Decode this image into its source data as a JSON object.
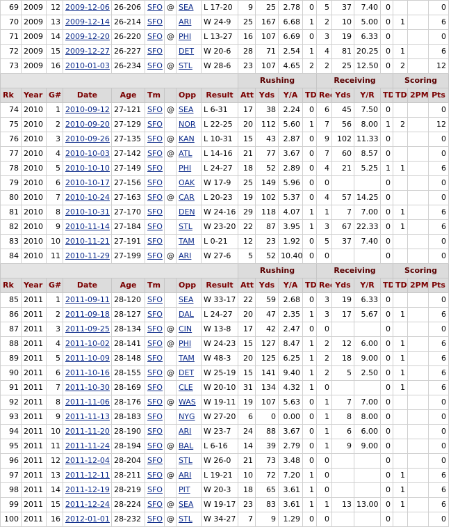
{
  "sections": [
    {
      "rows": [
        {
          "rk": "69",
          "year": "2009",
          "g": "12",
          "date": "2009-12-06",
          "age": "26-206",
          "tm": "SFO",
          "at": "@",
          "opp": "SEA",
          "result": "L 17-20",
          "att": "9",
          "yds": "25",
          "ya": "2.78",
          "td": "0",
          "rec": "5",
          "recyds": "37",
          "yr": "7.40",
          "rectd": "0",
          "tpm": "",
          "pts": "0"
        },
        {
          "rk": "70",
          "year": "2009",
          "g": "13",
          "date": "2009-12-14",
          "age": "26-214",
          "tm": "SFO",
          "at": "",
          "opp": "ARI",
          "result": "W 24-9",
          "att": "25",
          "yds": "167",
          "ya": "6.68",
          "td": "1",
          "rec": "2",
          "recyds": "10",
          "yr": "5.00",
          "rectd": "0",
          "tpm": "1",
          "pts": "6"
        },
        {
          "rk": "71",
          "year": "2009",
          "g": "14",
          "date": "2009-12-20",
          "age": "26-220",
          "tm": "SFO",
          "at": "@",
          "opp": "PHI",
          "result": "L 13-27",
          "att": "16",
          "yds": "107",
          "ya": "6.69",
          "td": "0",
          "rec": "3",
          "recyds": "19",
          "yr": "6.33",
          "rectd": "0",
          "tpm": "",
          "pts": "0"
        },
        {
          "rk": "72",
          "year": "2009",
          "g": "15",
          "date": "2009-12-27",
          "age": "26-227",
          "tm": "SFO",
          "at": "",
          "opp": "DET",
          "result": "W 20-6",
          "att": "28",
          "yds": "71",
          "ya": "2.54",
          "td": "1",
          "rec": "4",
          "recyds": "81",
          "yr": "20.25",
          "rectd": "0",
          "tpm": "1",
          "pts": "6"
        },
        {
          "rk": "73",
          "year": "2009",
          "g": "16",
          "date": "2010-01-03",
          "age": "26-234",
          "tm": "SFO",
          "at": "@",
          "opp": "STL",
          "result": "W 28-6",
          "att": "23",
          "yds": "107",
          "ya": "4.65",
          "td": "2",
          "rec": "2",
          "recyds": "25",
          "yr": "12.50",
          "rectd": "0",
          "tpm": "2",
          "pts": "12"
        }
      ]
    },
    {
      "rows": [
        {
          "rk": "74",
          "year": "2010",
          "g": "1",
          "date": "2010-09-12",
          "age": "27-121",
          "tm": "SFO",
          "at": "@",
          "opp": "SEA",
          "result": "L 6-31",
          "att": "17",
          "yds": "38",
          "ya": "2.24",
          "td": "0",
          "rec": "6",
          "recyds": "45",
          "yr": "7.50",
          "rectd": "0",
          "tpm": "",
          "pts": "0"
        },
        {
          "rk": "75",
          "year": "2010",
          "g": "2",
          "date": "2010-09-20",
          "age": "27-129",
          "tm": "SFO",
          "at": "",
          "opp": "NOR",
          "result": "L 22-25",
          "att": "20",
          "yds": "112",
          "ya": "5.60",
          "td": "1",
          "rec": "7",
          "recyds": "56",
          "yr": "8.00",
          "rectd": "1",
          "tpm": "2",
          "pts": "12"
        },
        {
          "rk": "76",
          "year": "2010",
          "g": "3",
          "date": "2010-09-26",
          "age": "27-135",
          "tm": "SFO",
          "at": "@",
          "opp": "KAN",
          "result": "L 10-31",
          "att": "15",
          "yds": "43",
          "ya": "2.87",
          "td": "0",
          "rec": "9",
          "recyds": "102",
          "yr": "11.33",
          "rectd": "0",
          "tpm": "",
          "pts": "0"
        },
        {
          "rk": "77",
          "year": "2010",
          "g": "4",
          "date": "2010-10-03",
          "age": "27-142",
          "tm": "SFO",
          "at": "@",
          "opp": "ATL",
          "result": "L 14-16",
          "att": "21",
          "yds": "77",
          "ya": "3.67",
          "td": "0",
          "rec": "7",
          "recyds": "60",
          "yr": "8.57",
          "rectd": "0",
          "tpm": "",
          "pts": "0"
        },
        {
          "rk": "78",
          "year": "2010",
          "g": "5",
          "date": "2010-10-10",
          "age": "27-149",
          "tm": "SFO",
          "at": "",
          "opp": "PHI",
          "result": "L 24-27",
          "att": "18",
          "yds": "52",
          "ya": "2.89",
          "td": "0",
          "rec": "4",
          "recyds": "21",
          "yr": "5.25",
          "rectd": "1",
          "tpm": "1",
          "pts": "6"
        },
        {
          "rk": "79",
          "year": "2010",
          "g": "6",
          "date": "2010-10-17",
          "age": "27-156",
          "tm": "SFO",
          "at": "",
          "opp": "OAK",
          "result": "W 17-9",
          "att": "25",
          "yds": "149",
          "ya": "5.96",
          "td": "0",
          "rec": "0",
          "recyds": "",
          "yr": "",
          "rectd": "0",
          "tpm": "",
          "pts": "0"
        },
        {
          "rk": "80",
          "year": "2010",
          "g": "7",
          "date": "2010-10-24",
          "age": "27-163",
          "tm": "SFO",
          "at": "@",
          "opp": "CAR",
          "result": "L 20-23",
          "att": "19",
          "yds": "102",
          "ya": "5.37",
          "td": "0",
          "rec": "4",
          "recyds": "57",
          "yr": "14.25",
          "rectd": "0",
          "tpm": "",
          "pts": "0"
        },
        {
          "rk": "81",
          "year": "2010",
          "g": "8",
          "date": "2010-10-31",
          "age": "27-170",
          "tm": "SFO",
          "at": "",
          "opp": "DEN",
          "result": "W 24-16",
          "att": "29",
          "yds": "118",
          "ya": "4.07",
          "td": "1",
          "rec": "1",
          "recyds": "7",
          "yr": "7.00",
          "rectd": "0",
          "tpm": "1",
          "pts": "6"
        },
        {
          "rk": "82",
          "year": "2010",
          "g": "9",
          "date": "2010-11-14",
          "age": "27-184",
          "tm": "SFO",
          "at": "",
          "opp": "STL",
          "result": "W 23-20",
          "att": "22",
          "yds": "87",
          "ya": "3.95",
          "td": "1",
          "rec": "3",
          "recyds": "67",
          "yr": "22.33",
          "rectd": "0",
          "tpm": "1",
          "pts": "6"
        },
        {
          "rk": "83",
          "year": "2010",
          "g": "10",
          "date": "2010-11-21",
          "age": "27-191",
          "tm": "SFO",
          "at": "",
          "opp": "TAM",
          "result": "L 0-21",
          "att": "12",
          "yds": "23",
          "ya": "1.92",
          "td": "0",
          "rec": "5",
          "recyds": "37",
          "yr": "7.40",
          "rectd": "0",
          "tpm": "",
          "pts": "0"
        },
        {
          "rk": "84",
          "year": "2010",
          "g": "11",
          "date": "2010-11-29",
          "age": "27-199",
          "tm": "SFO",
          "at": "@",
          "opp": "ARI",
          "result": "W 27-6",
          "att": "5",
          "yds": "52",
          "ya": "10.40",
          "td": "0",
          "rec": "0",
          "recyds": "",
          "yr": "",
          "rectd": "0",
          "tpm": "",
          "pts": "0"
        }
      ]
    },
    {
      "rows": [
        {
          "rk": "85",
          "year": "2011",
          "g": "1",
          "date": "2011-09-11",
          "age": "28-120",
          "tm": "SFO",
          "at": "",
          "opp": "SEA",
          "result": "W 33-17",
          "att": "22",
          "yds": "59",
          "ya": "2.68",
          "td": "0",
          "rec": "3",
          "recyds": "19",
          "yr": "6.33",
          "rectd": "0",
          "tpm": "",
          "pts": "0"
        },
        {
          "rk": "86",
          "year": "2011",
          "g": "2",
          "date": "2011-09-18",
          "age": "28-127",
          "tm": "SFO",
          "at": "",
          "opp": "DAL",
          "result": "L 24-27",
          "att": "20",
          "yds": "47",
          "ya": "2.35",
          "td": "1",
          "rec": "3",
          "recyds": "17",
          "yr": "5.67",
          "rectd": "0",
          "tpm": "1",
          "pts": "6"
        },
        {
          "rk": "87",
          "year": "2011",
          "g": "3",
          "date": "2011-09-25",
          "age": "28-134",
          "tm": "SFO",
          "at": "@",
          "opp": "CIN",
          "result": "W 13-8",
          "att": "17",
          "yds": "42",
          "ya": "2.47",
          "td": "0",
          "rec": "0",
          "recyds": "",
          "yr": "",
          "rectd": "0",
          "tpm": "",
          "pts": "0"
        },
        {
          "rk": "88",
          "year": "2011",
          "g": "4",
          "date": "2011-10-02",
          "age": "28-141",
          "tm": "SFO",
          "at": "@",
          "opp": "PHI",
          "result": "W 24-23",
          "att": "15",
          "yds": "127",
          "ya": "8.47",
          "td": "1",
          "rec": "2",
          "recyds": "12",
          "yr": "6.00",
          "rectd": "0",
          "tpm": "1",
          "pts": "6"
        },
        {
          "rk": "89",
          "year": "2011",
          "g": "5",
          "date": "2011-10-09",
          "age": "28-148",
          "tm": "SFO",
          "at": "",
          "opp": "TAM",
          "result": "W 48-3",
          "att": "20",
          "yds": "125",
          "ya": "6.25",
          "td": "1",
          "rec": "2",
          "recyds": "18",
          "yr": "9.00",
          "rectd": "0",
          "tpm": "1",
          "pts": "6"
        },
        {
          "rk": "90",
          "year": "2011",
          "g": "6",
          "date": "2011-10-16",
          "age": "28-155",
          "tm": "SFO",
          "at": "@",
          "opp": "DET",
          "result": "W 25-19",
          "att": "15",
          "yds": "141",
          "ya": "9.40",
          "td": "1",
          "rec": "2",
          "recyds": "5",
          "yr": "2.50",
          "rectd": "0",
          "tpm": "1",
          "pts": "6"
        },
        {
          "rk": "91",
          "year": "2011",
          "g": "7",
          "date": "2011-10-30",
          "age": "28-169",
          "tm": "SFO",
          "at": "",
          "opp": "CLE",
          "result": "W 20-10",
          "att": "31",
          "yds": "134",
          "ya": "4.32",
          "td": "1",
          "rec": "0",
          "recyds": "",
          "yr": "",
          "rectd": "0",
          "tpm": "1",
          "pts": "6"
        },
        {
          "rk": "92",
          "year": "2011",
          "g": "8",
          "date": "2011-11-06",
          "age": "28-176",
          "tm": "SFO",
          "at": "@",
          "opp": "WAS",
          "result": "W 19-11",
          "att": "19",
          "yds": "107",
          "ya": "5.63",
          "td": "0",
          "rec": "1",
          "recyds": "7",
          "yr": "7.00",
          "rectd": "0",
          "tpm": "",
          "pts": "0"
        },
        {
          "rk": "93",
          "year": "2011",
          "g": "9",
          "date": "2011-11-13",
          "age": "28-183",
          "tm": "SFO",
          "at": "",
          "opp": "NYG",
          "result": "W 27-20",
          "att": "6",
          "yds": "0",
          "ya": "0.00",
          "td": "0",
          "rec": "1",
          "recyds": "8",
          "yr": "8.00",
          "rectd": "0",
          "tpm": "",
          "pts": "0"
        },
        {
          "rk": "94",
          "year": "2011",
          "g": "10",
          "date": "2011-11-20",
          "age": "28-190",
          "tm": "SFO",
          "at": "",
          "opp": "ARI",
          "result": "W 23-7",
          "att": "24",
          "yds": "88",
          "ya": "3.67",
          "td": "0",
          "rec": "1",
          "recyds": "6",
          "yr": "6.00",
          "rectd": "0",
          "tpm": "",
          "pts": "0"
        },
        {
          "rk": "95",
          "year": "2011",
          "g": "11",
          "date": "2011-11-24",
          "age": "28-194",
          "tm": "SFO",
          "at": "@",
          "opp": "BAL",
          "result": "L 6-16",
          "att": "14",
          "yds": "39",
          "ya": "2.79",
          "td": "0",
          "rec": "1",
          "recyds": "9",
          "yr": "9.00",
          "rectd": "0",
          "tpm": "",
          "pts": "0"
        },
        {
          "rk": "96",
          "year": "2011",
          "g": "12",
          "date": "2011-12-04",
          "age": "28-204",
          "tm": "SFO",
          "at": "",
          "opp": "STL",
          "result": "W 26-0",
          "att": "21",
          "yds": "73",
          "ya": "3.48",
          "td": "0",
          "rec": "0",
          "recyds": "",
          "yr": "",
          "rectd": "0",
          "tpm": "",
          "pts": "0"
        },
        {
          "rk": "97",
          "year": "2011",
          "g": "13",
          "date": "2011-12-11",
          "age": "28-211",
          "tm": "SFO",
          "at": "@",
          "opp": "ARI",
          "result": "L 19-21",
          "att": "10",
          "yds": "72",
          "ya": "7.20",
          "td": "1",
          "rec": "0",
          "recyds": "",
          "yr": "",
          "rectd": "0",
          "tpm": "1",
          "pts": "6"
        },
        {
          "rk": "98",
          "year": "2011",
          "g": "14",
          "date": "2011-12-19",
          "age": "28-219",
          "tm": "SFO",
          "at": "",
          "opp": "PIT",
          "result": "W 20-3",
          "att": "18",
          "yds": "65",
          "ya": "3.61",
          "td": "1",
          "rec": "0",
          "recyds": "",
          "yr": "",
          "rectd": "0",
          "tpm": "1",
          "pts": "6"
        },
        {
          "rk": "99",
          "year": "2011",
          "g": "15",
          "date": "2011-12-24",
          "age": "28-224",
          "tm": "SFO",
          "at": "@",
          "opp": "SEA",
          "result": "W 19-17",
          "att": "23",
          "yds": "83",
          "ya": "3.61",
          "td": "1",
          "rec": "1",
          "recyds": "13",
          "yr": "13.00",
          "rectd": "0",
          "tpm": "1",
          "pts": "6"
        },
        {
          "rk": "100",
          "year": "2011",
          "g": "16",
          "date": "2012-01-01",
          "age": "28-232",
          "tm": "SFO",
          "at": "@",
          "opp": "STL",
          "result": "W 34-27",
          "att": "7",
          "yds": "9",
          "ya": "1.29",
          "td": "0",
          "rec": "0",
          "recyds": "",
          "yr": "",
          "rectd": "0",
          "tpm": "",
          "pts": "0"
        }
      ]
    }
  ],
  "group_headers": {
    "rushing": "Rushing",
    "receiving": "Receiving",
    "scoring": "Scoring"
  },
  "headers": [
    "Rk",
    "Year",
    "G#",
    "Date",
    "Age",
    "Tm",
    "",
    "Opp",
    "Result",
    "Att",
    "Yds",
    "Y/A",
    "TD",
    "Rec",
    "Yds",
    "Y/R",
    "TD",
    "TD",
    "2PM",
    "Pts"
  ]
}
